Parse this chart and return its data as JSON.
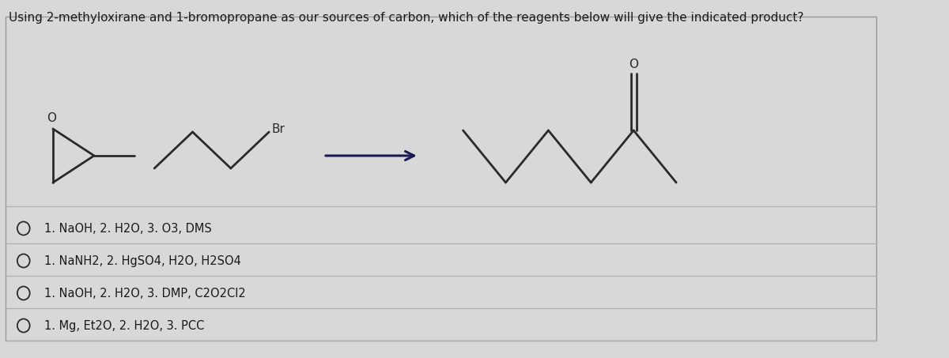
{
  "title": "Using 2-methyloxirane and 1-bromopropane as our sources of carbon, which of the reagents below will give the indicated product?",
  "title_fontsize": 11,
  "bg_color": "#d8d8d8",
  "panel_color": "#d8d8d8",
  "line_color": "#2a2a2a",
  "arrow_color": "#1a1a50",
  "text_color": "#1a1a1a",
  "options": [
    "1. NaOH, 2. H2O, 3. O3, DMS",
    "1. NaNH2, 2. HgSO4, H2O, H2SO4",
    "1. NaOH, 2. H2O, 3. DMP, C2O2Cl2",
    "1. Mg, Et2O, 2. H2O, 3. PCC"
  ],
  "option_fontsize": 10.5,
  "divider_color": "#b0b0b0"
}
